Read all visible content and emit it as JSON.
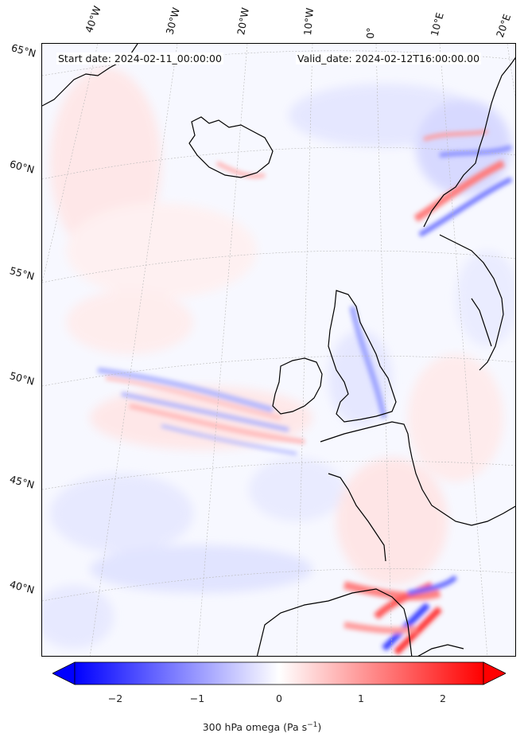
{
  "header": {
    "start": "Start date: 2024-02-11_00:00:00",
    "valid": "Valid_date: 2024-02-12T16:00:00.00"
  },
  "lon_labels": [
    "40°W",
    "30°W",
    "20°W",
    "10°W",
    "0°",
    "10°E",
    "20°E"
  ],
  "lat_labels": [
    "65°N",
    "60°N",
    "55°N",
    "50°N",
    "45°N",
    "40°N"
  ],
  "colorbar": {
    "ticks": [
      "−2",
      "−1",
      "0",
      "1",
      "2"
    ],
    "label_prefix": "300 hPa omega (Pa s",
    "label_exp": "−1",
    "label_suffix": ")",
    "range": [
      -2.6,
      2.6
    ],
    "colors": {
      "negative": "#0000ff",
      "zero": "#ffffff",
      "positive": "#ff0000"
    }
  }
}
